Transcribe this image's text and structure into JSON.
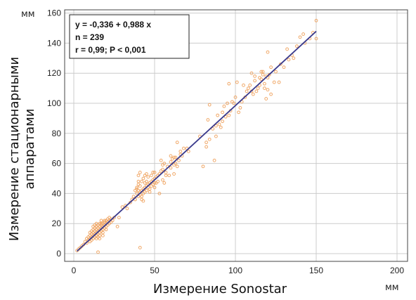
{
  "chart_data": {
    "type": "scatter",
    "xlabel": "Измерение Sonostar",
    "ylabel_lines": [
      "Измерение стационарными",
      "аппаратами"
    ],
    "x_unit": "мм",
    "y_unit": "мм",
    "xlim": [
      0,
      200
    ],
    "ylim": [
      0,
      160
    ],
    "x_ticks": [
      0,
      50,
      100,
      150,
      200
    ],
    "y_ticks": [
      0,
      20,
      40,
      60,
      80,
      100,
      120,
      140,
      160
    ],
    "grid": true,
    "stats": [
      "y = -0,336  +  0,988  x",
      "n = 239",
      "r = 0,99; P < 0,001"
    ],
    "regression": {
      "intercept": -0.336,
      "slope": 0.988,
      "x_range": [
        2,
        150
      ]
    },
    "colors": {
      "points": "#f0a868",
      "line": "#3a3a8c",
      "grid": "#cccccc"
    },
    "points": [
      [
        2,
        2
      ],
      [
        3,
        3
      ],
      [
        4,
        4
      ],
      [
        5,
        5
      ],
      [
        6,
        6
      ],
      [
        7,
        8
      ],
      [
        8,
        7
      ],
      [
        9,
        9
      ],
      [
        10,
        10
      ],
      [
        10,
        12
      ],
      [
        11,
        11
      ],
      [
        11,
        13
      ],
      [
        12,
        12
      ],
      [
        12,
        14
      ],
      [
        13,
        11
      ],
      [
        13,
        13
      ],
      [
        13,
        15
      ],
      [
        14,
        14
      ],
      [
        14,
        12
      ],
      [
        14,
        16
      ],
      [
        15,
        15
      ],
      [
        15,
        13
      ],
      [
        15,
        17
      ],
      [
        16,
        16
      ],
      [
        16,
        14
      ],
      [
        16,
        18
      ],
      [
        17,
        17
      ],
      [
        17,
        15
      ],
      [
        17,
        19
      ],
      [
        18,
        18
      ],
      [
        18,
        16
      ],
      [
        18,
        20
      ],
      [
        19,
        19
      ],
      [
        19,
        17
      ],
      [
        19,
        21
      ],
      [
        20,
        20
      ],
      [
        20,
        18
      ],
      [
        20,
        22
      ],
      [
        21,
        21
      ],
      [
        21,
        19
      ],
      [
        22,
        22
      ],
      [
        22,
        20
      ],
      [
        23,
        23
      ],
      [
        12,
        10
      ],
      [
        13,
        17
      ],
      [
        14,
        18
      ],
      [
        15,
        11
      ],
      [
        16,
        20
      ],
      [
        17,
        22
      ],
      [
        18,
        14
      ],
      [
        19,
        22
      ],
      [
        10,
        8
      ],
      [
        11,
        9
      ],
      [
        12,
        16
      ],
      [
        14,
        10
      ],
      [
        15,
        19
      ],
      [
        16,
        12
      ],
      [
        12,
        18
      ],
      [
        17,
        20
      ],
      [
        15,
        1
      ],
      [
        11,
        15
      ],
      [
        13,
        19
      ],
      [
        18,
        12
      ],
      [
        20,
        16
      ],
      [
        21,
        23
      ],
      [
        9,
        11
      ],
      [
        8,
        10
      ],
      [
        10,
        14
      ],
      [
        16,
        10
      ],
      [
        14,
        20
      ],
      [
        22,
        24
      ],
      [
        23,
        21
      ],
      [
        24,
        22
      ],
      [
        25,
        24
      ],
      [
        27,
        18
      ],
      [
        28,
        24
      ],
      [
        30,
        31
      ],
      [
        32,
        32
      ],
      [
        33,
        30
      ],
      [
        35,
        34
      ],
      [
        36,
        36
      ],
      [
        37,
        38
      ],
      [
        38,
        36
      ],
      [
        38,
        42
      ],
      [
        39,
        40
      ],
      [
        39,
        44
      ],
      [
        40,
        38
      ],
      [
        40,
        42
      ],
      [
        40,
        46
      ],
      [
        41,
        41
      ],
      [
        41,
        39
      ],
      [
        41,
        45
      ],
      [
        42,
        42
      ],
      [
        42,
        38
      ],
      [
        42,
        48
      ],
      [
        43,
        43
      ],
      [
        43,
        40
      ],
      [
        43,
        50
      ],
      [
        44,
        44
      ],
      [
        44,
        41
      ],
      [
        44,
        47
      ],
      [
        45,
        45
      ],
      [
        45,
        42
      ],
      [
        45,
        48
      ],
      [
        46,
        46
      ],
      [
        46,
        44
      ],
      [
        46,
        51
      ],
      [
        47,
        47
      ],
      [
        47,
        43
      ],
      [
        48,
        48
      ],
      [
        48,
        45
      ],
      [
        48,
        52
      ],
      [
        49,
        49
      ],
      [
        49,
        46
      ],
      [
        50,
        50
      ],
      [
        50,
        44
      ],
      [
        50,
        54
      ],
      [
        51,
        51
      ],
      [
        52,
        52
      ],
      [
        52,
        48
      ],
      [
        53,
        53
      ],
      [
        54,
        55
      ],
      [
        55,
        56
      ],
      [
        55,
        49
      ],
      [
        56,
        60
      ],
      [
        57,
        54
      ],
      [
        58,
        58
      ],
      [
        59,
        52
      ],
      [
        60,
        61
      ],
      [
        60,
        57
      ],
      [
        61,
        63
      ],
      [
        62,
        53
      ],
      [
        63,
        64
      ],
      [
        64,
        58
      ],
      [
        65,
        62
      ],
      [
        66,
        68
      ],
      [
        67,
        65
      ],
      [
        70,
        70
      ],
      [
        71,
        68
      ],
      [
        38,
        36
      ],
      [
        41,
        54
      ],
      [
        40,
        52
      ],
      [
        42,
        36
      ],
      [
        39,
        43
      ],
      [
        43,
        35
      ],
      [
        44,
        52
      ],
      [
        47,
        41
      ],
      [
        49,
        54
      ],
      [
        51,
        47
      ],
      [
        53,
        40
      ],
      [
        54,
        62
      ],
      [
        56,
        47
      ],
      [
        60,
        65
      ],
      [
        62,
        64
      ],
      [
        64,
        74
      ],
      [
        66,
        66
      ],
      [
        68,
        70
      ],
      [
        41,
        4
      ],
      [
        57,
        52
      ],
      [
        62,
        59
      ],
      [
        40,
        48
      ],
      [
        45,
        53
      ],
      [
        50,
        47
      ],
      [
        55,
        59
      ],
      [
        63,
        60
      ],
      [
        78,
        78
      ],
      [
        80,
        58
      ],
      [
        82,
        71
      ],
      [
        82,
        74
      ],
      [
        83,
        89
      ],
      [
        84,
        99
      ],
      [
        86,
        83
      ],
      [
        87,
        62
      ],
      [
        88,
        85
      ],
      [
        90,
        86
      ],
      [
        91,
        84
      ],
      [
        92,
        88
      ],
      [
        93,
        98
      ],
      [
        94,
        91
      ],
      [
        95,
        100
      ],
      [
        96,
        113
      ],
      [
        97,
        95
      ],
      [
        98,
        101
      ],
      [
        100,
        104
      ],
      [
        101,
        114
      ],
      [
        102,
        94
      ],
      [
        104,
        101
      ],
      [
        106,
        104
      ],
      [
        107,
        108
      ],
      [
        108,
        110
      ],
      [
        109,
        112
      ],
      [
        110,
        120
      ],
      [
        111,
        106
      ],
      [
        112,
        115
      ],
      [
        113,
        108
      ],
      [
        114,
        110
      ],
      [
        115,
        117
      ],
      [
        116,
        116
      ],
      [
        117,
        119
      ],
      [
        117,
        121
      ],
      [
        118,
        110
      ],
      [
        118,
        113
      ],
      [
        119,
        103
      ],
      [
        119,
        118
      ],
      [
        120,
        117
      ],
      [
        120,
        134
      ],
      [
        121,
        119
      ],
      [
        122,
        106
      ],
      [
        124,
        114
      ],
      [
        127,
        114
      ],
      [
        130,
        124
      ],
      [
        133,
        129
      ],
      [
        135,
        132
      ],
      [
        138,
        138
      ],
      [
        140,
        144
      ],
      [
        143,
        140
      ],
      [
        146,
        143
      ],
      [
        148,
        147
      ],
      [
        150,
        143
      ],
      [
        150,
        155
      ],
      [
        88,
        78
      ],
      [
        92,
        94
      ],
      [
        96,
        92
      ],
      [
        103,
        97
      ],
      [
        110,
        108
      ],
      [
        115,
        112
      ],
      [
        120,
        109
      ],
      [
        125,
        121
      ],
      [
        128,
        126
      ],
      [
        132,
        136
      ],
      [
        84,
        76
      ],
      [
        89,
        92
      ],
      [
        99,
        100
      ],
      [
        105,
        112
      ],
      [
        112,
        118
      ],
      [
        116,
        121
      ],
      [
        122,
        124
      ],
      [
        136,
        130
      ],
      [
        142,
        146
      ]
    ]
  }
}
